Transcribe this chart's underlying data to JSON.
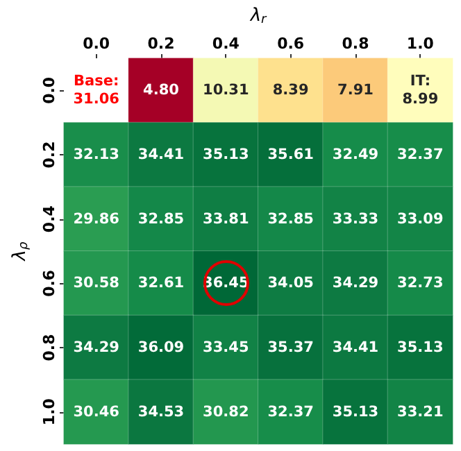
{
  "chart_data": {
    "type": "heatmap",
    "xlabel": "λ$_{r}$",
    "ylabel": "λ$_{ρ}$",
    "categories": [
      "0.0",
      "0.2",
      "0.4",
      "0.6",
      "0.8",
      "1.0"
    ],
    "y_categories": [
      "0.0",
      "0.2",
      "0.4",
      "0.6",
      "0.8",
      "1.0"
    ],
    "cells": [
      [
        null,
        4.8,
        10.31,
        8.39,
        7.91,
        8.99
      ],
      [
        32.13,
        34.41,
        35.13,
        35.61,
        32.49,
        32.37
      ],
      [
        29.86,
        32.85,
        33.81,
        32.85,
        33.33,
        33.09
      ],
      [
        30.58,
        32.61,
        36.45,
        34.05,
        34.29,
        32.73
      ],
      [
        34.29,
        36.09,
        33.45,
        35.37,
        34.41,
        35.13
      ],
      [
        30.46,
        34.53,
        30.82,
        32.37,
        35.13,
        33.21
      ]
    ],
    "cell_labels": [
      [
        "Base:\n31.06",
        "4.80",
        "10.31",
        "8.39",
        "7.91",
        "IT:\n8.99"
      ],
      [
        "32.13",
        "34.41",
        "35.13",
        "35.61",
        "32.49",
        "32.37"
      ],
      [
        "29.86",
        "32.85",
        "33.81",
        "32.85",
        "33.33",
        "33.09"
      ],
      [
        "30.58",
        "32.61",
        "36.45",
        "34.05",
        "34.29",
        "32.73"
      ],
      [
        "34.29",
        "36.09",
        "33.45",
        "35.37",
        "34.41",
        "35.13"
      ],
      [
        "30.46",
        "34.53",
        "30.82",
        "32.37",
        "35.13",
        "33.21"
      ]
    ]
  }
}
